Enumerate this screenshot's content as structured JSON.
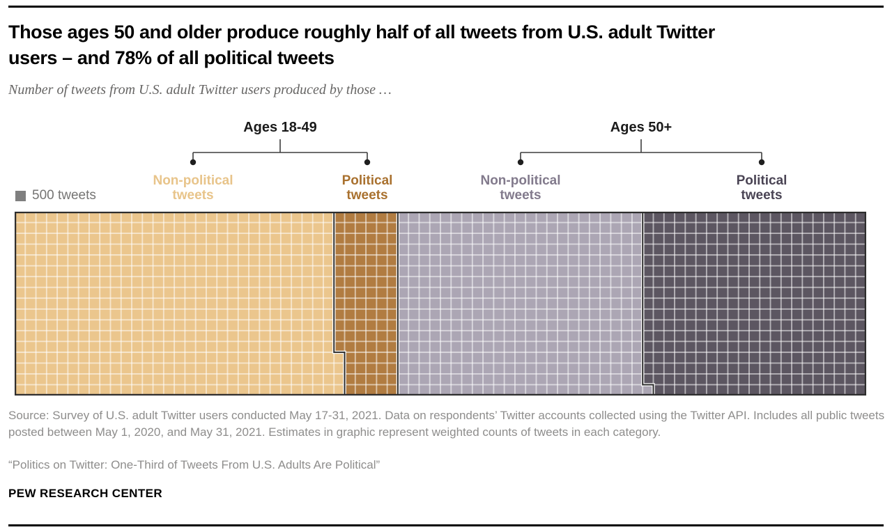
{
  "header": {
    "title_line1": "Those ages 50 and older produce roughly half of all tweets from U.S. adult Twitter",
    "title_line2": "users – and 78% of all political tweets",
    "subtitle": "Number of tweets from U.S. adult Twitter users produced by those …"
  },
  "legend": {
    "swatch_color": "#7f7f7f",
    "label": "500 tweets"
  },
  "chart_data": {
    "type": "waffle",
    "tweets_per_square": 500,
    "grid": {
      "columns": 80,
      "rows": 17
    },
    "grid_line_color": "rgba(255,255,255,0.55)",
    "border_color": "#2e2e2e",
    "groups": [
      {
        "label": "Ages 18-49"
      },
      {
        "label": "Ages 50+"
      }
    ],
    "segments": [
      {
        "group": "Ages 18-49",
        "label": "Non-political tweets",
        "label_lines": [
          "Non-political",
          "tweets"
        ],
        "color": "#ebc68d",
        "label_color": "#e8c48a",
        "squares": 514,
        "tweets_estimate": 257000,
        "bounds": [
          {
            "rows": [
              0,
              13
            ],
            "cols": [
              0,
              30
            ]
          },
          {
            "rows": [
              13,
              17
            ],
            "cols": [
              0,
              31
            ]
          }
        ]
      },
      {
        "group": "Ages 18-49",
        "label": "Political tweets",
        "label_lines": [
          "Political",
          "tweets"
        ],
        "color": "#b17c41",
        "label_color": "#a9712f",
        "squares": 98,
        "tweets_estimate": 49000,
        "bounds": [
          {
            "rows": [
              0,
              13
            ],
            "cols": [
              30,
              36
            ]
          },
          {
            "rows": [
              13,
              17
            ],
            "cols": [
              31,
              36
            ]
          }
        ]
      },
      {
        "group": "Ages 50+",
        "label": "Non-political tweets",
        "label_lines": [
          "Non-political",
          "tweets"
        ],
        "color": "#aca6b4",
        "label_color": "#827a8c",
        "squares": 392,
        "tweets_estimate": 196000,
        "bounds": [
          {
            "rows": [
              0,
              16
            ],
            "cols": [
              36,
              59
            ]
          },
          {
            "rows": [
              16,
              17
            ],
            "cols": [
              36,
              60
            ]
          }
        ]
      },
      {
        "group": "Ages 50+",
        "label": "Political tweets",
        "label_lines": [
          "Political",
          "tweets"
        ],
        "color": "#5c5661",
        "label_color": "#4a4454",
        "squares": 356,
        "tweets_estimate": 178000,
        "bounds": [
          {
            "rows": [
              0,
              16
            ],
            "cols": [
              59,
              80
            ]
          },
          {
            "rows": [
              16,
              17
            ],
            "cols": [
              60,
              80
            ]
          }
        ]
      }
    ]
  },
  "footer": {
    "source_text": "Source: Survey of U.S. adult Twitter users conducted May 17-31, 2021. Data on respondents’ Twitter accounts collected using the Twitter API. Includes all public tweets posted between May 1, 2020, and May 31, 2021. Estimates in graphic represent weighted counts of tweets in each category.",
    "report_quote": "“Politics on Twitter: One-Third of Tweets From U.S. Adults Are Political”",
    "brand": "PEW RESEARCH CENTER"
  }
}
